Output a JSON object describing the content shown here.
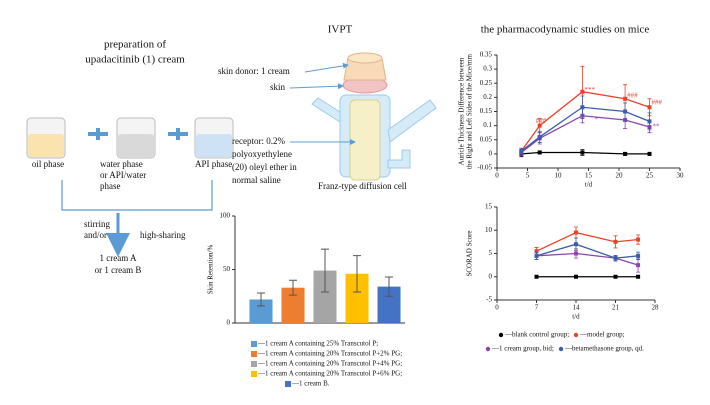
{
  "preparation": {
    "title_lines": [
      "preparation of",
      "upadacitinib (1)   cream"
    ],
    "oil": "oil phase",
    "water_lines": [
      "water phase",
      "or API/water",
      "phase"
    ],
    "api": "API phase",
    "process_lines": [
      "stirring",
      "and/or"
    ],
    "process2": "high-sharing",
    "product_lines": [
      "1 cream A",
      "or 1 cream B"
    ]
  },
  "ivpt": {
    "title": "IVPT",
    "donor": "skin donor: 1 cream",
    "skin": "skin",
    "receptor_lines": [
      "receptor: 0.2%",
      "polyoxyethylene",
      "(20) oleyl ether in",
      "normal saline"
    ],
    "cell": "Franz-type diffusion cell"
  },
  "chart_data": [
    {
      "type": "bar",
      "y_label": "Skin Retention/%",
      "ylim": [
        0,
        100
      ],
      "yticks": [
        0,
        50,
        100
      ],
      "categories": [
        "—1 cream A containing 25% Transcutol P;",
        "—1 cream A containing 20% Transcutol P+2% PG;",
        "—1 cream A containing 20% Transcutol P+4% PG;",
        "—1 cream A containing 20% Transcutol P+6% PG;",
        "—1 cream B."
      ],
      "values": [
        22,
        33,
        49,
        46,
        34
      ],
      "errors": [
        6,
        7,
        20,
        17,
        9
      ],
      "colors": [
        "#5b9bd5",
        "#ed7d31",
        "#a5a5a5",
        "#ffc000",
        "#4472c4"
      ]
    },
    {
      "type": "line",
      "title": "the pharmacodynamic studies on mice",
      "y_label_lines": [
        "Auricle Thickness Difference between",
        "the Right and Left Sides of the Mice/mm"
      ],
      "x_label": "t/d",
      "xlim": [
        0,
        30
      ],
      "xticks": [
        0,
        5,
        10,
        15,
        20,
        25,
        30
      ],
      "ylim": [
        -0.05,
        0.35
      ],
      "yticks": [
        {
          "value": -0.05,
          "label": "-0.05"
        },
        0,
        0.05,
        0.1,
        0.15,
        0.2,
        0.25,
        0.3,
        0.35
      ],
      "x": [
        4,
        7,
        14,
        21,
        25
      ],
      "series": [
        {
          "color": "#000000",
          "values": [
            0,
            0.005,
            0.005,
            0,
            0
          ],
          "errors": [
            0.01,
            0.005,
            0.01,
            0.005,
            0.005
          ]
        },
        {
          "color": "#e8412c",
          "values": [
            0.01,
            0.1,
            0.22,
            0.195,
            0.165
          ],
          "errors": [
            0.01,
            0.025,
            0.09,
            0.05,
            0.03
          ]
        },
        {
          "color": "#8e44ad",
          "values": [
            0.005,
            0.055,
            0.135,
            0.12,
            0.095
          ],
          "errors": [
            0.01,
            0.02,
            0.025,
            0.03,
            0.02
          ]
        },
        {
          "color": "#3a5fa8",
          "values": [
            0.01,
            0.06,
            0.165,
            0.15,
            0.115
          ],
          "errors": [
            0.01,
            0.02,
            0.04,
            0.03,
            0.03
          ]
        }
      ],
      "annotations": [
        {
          "text": "###",
          "color": "#e8412c"
        },
        {
          "text": "***",
          "color": "#e8412c"
        },
        {
          "text": "###",
          "color": "#e8412c"
        },
        {
          "text": "###",
          "color": "#e8412c"
        },
        {
          "text": "*",
          "color": "#8e44ad"
        },
        {
          "text": "**",
          "color": "#8e44ad"
        }
      ]
    },
    {
      "type": "line",
      "y_label": "SCORAD Score",
      "x_label": "t/d",
      "xlim": [
        0,
        28
      ],
      "xticks": [
        0,
        7,
        14,
        21,
        28
      ],
      "ylim": [
        -5,
        15
      ],
      "yticks": [
        -5,
        0,
        5,
        10,
        15
      ],
      "x": [
        7,
        14,
        21,
        25
      ],
      "series": [
        {
          "name": "—blank control group;",
          "color": "#000000",
          "values": [
            0,
            0,
            0,
            0
          ],
          "errors": [
            0.2,
            0.2,
            0.2,
            0.2
          ]
        },
        {
          "name": "—model group;",
          "color": "#e8412c",
          "values": [
            5.5,
            9.5,
            7.5,
            8
          ],
          "errors": [
            0.8,
            1.2,
            1.3,
            1
          ]
        },
        {
          "name": "—1 cream group, bid;",
          "color": "#8e44ad",
          "values": [
            4.5,
            5,
            4,
            2.5
          ],
          "errors": [
            0.8,
            1,
            0.6,
            1.5
          ]
        },
        {
          "name": "—betamethasone group, qd.",
          "color": "#3a5fa8",
          "values": [
            4.5,
            7,
            4,
            4.5
          ],
          "errors": [
            0.8,
            1.3,
            0.6,
            0.8
          ]
        }
      ]
    }
  ]
}
